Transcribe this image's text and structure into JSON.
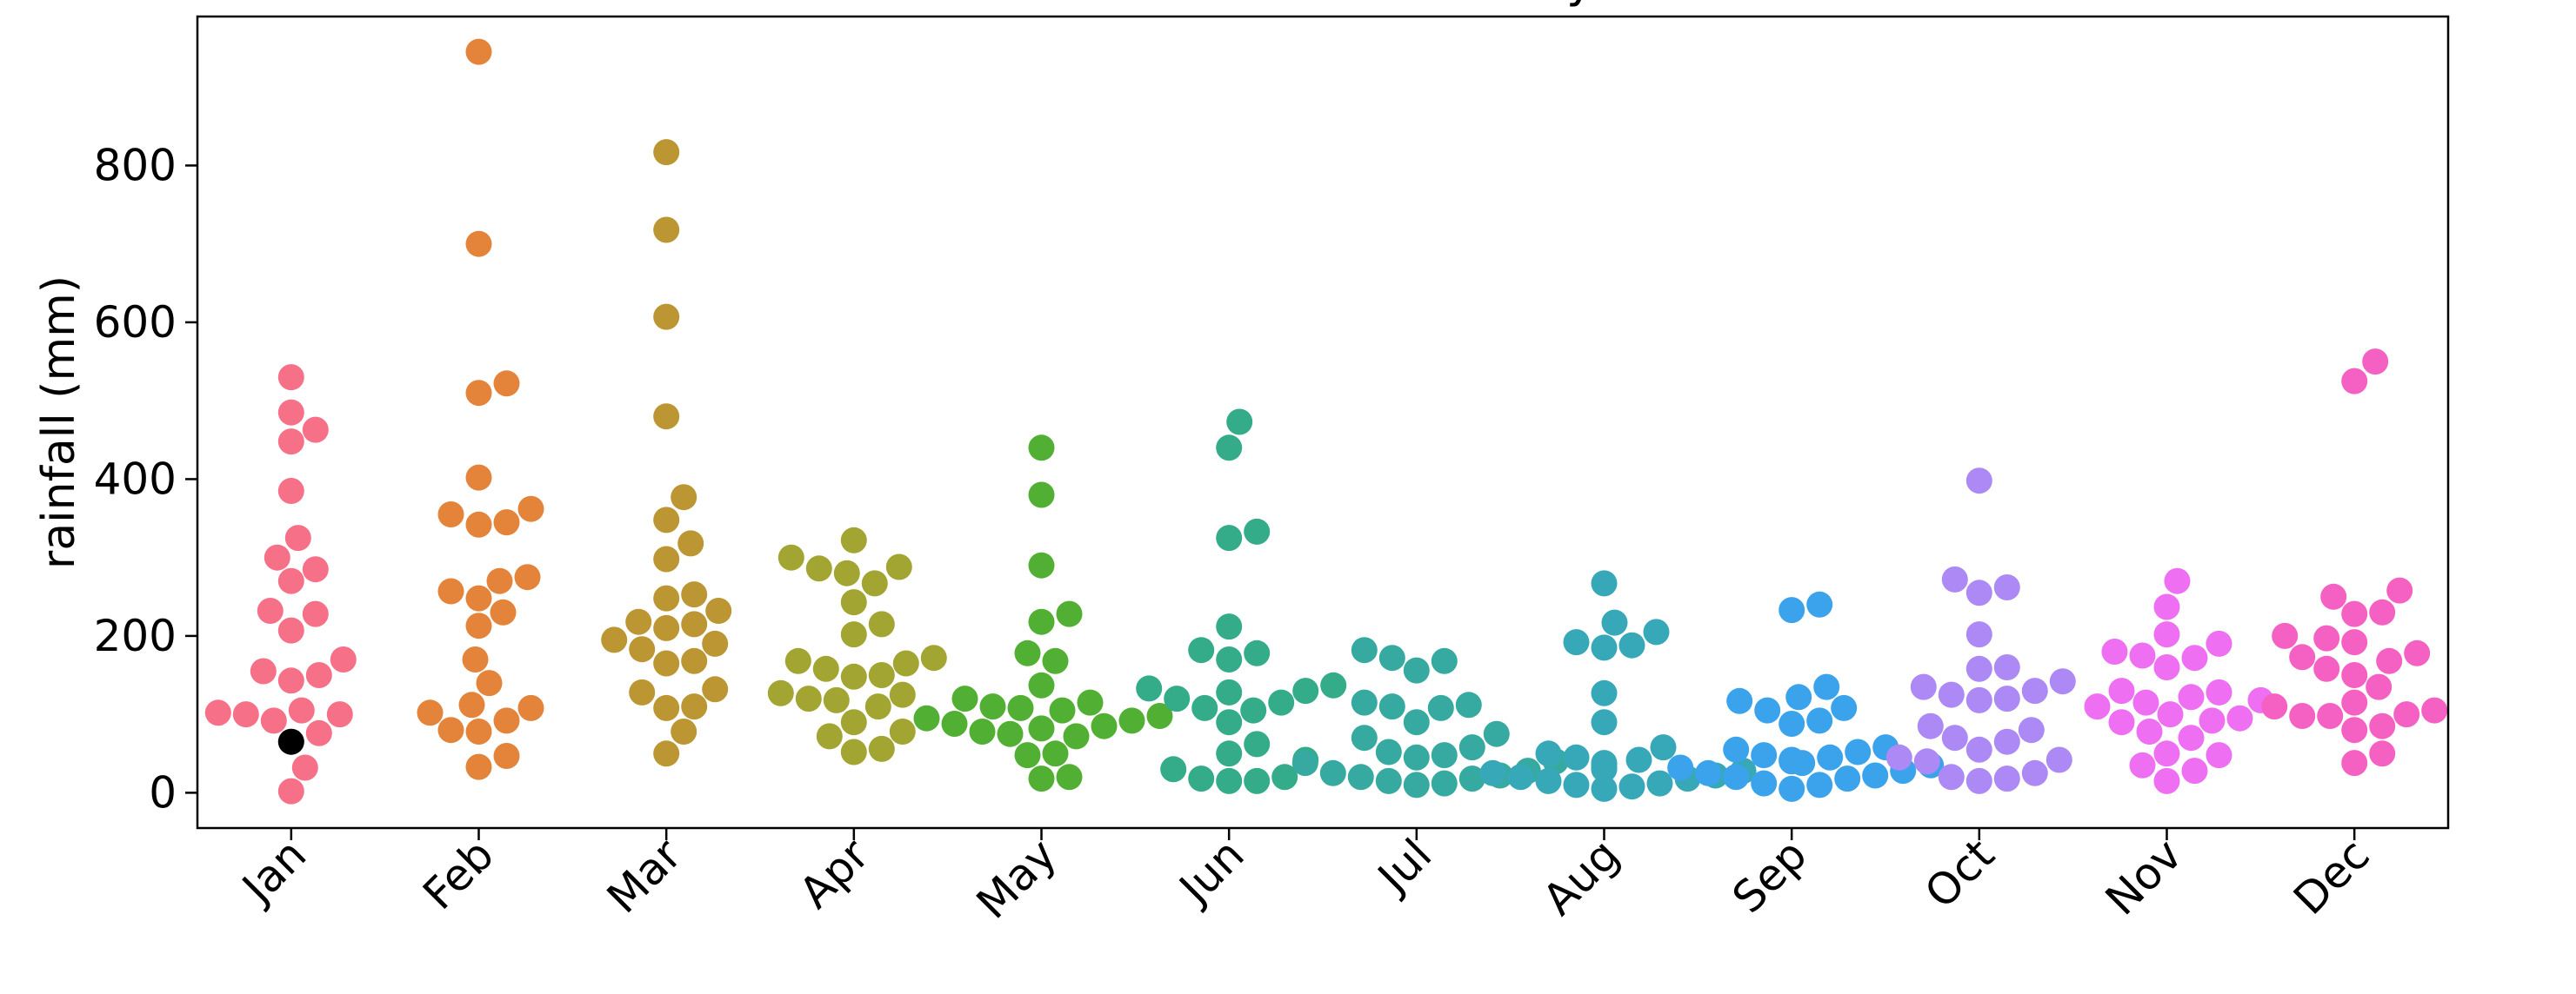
{
  "chart_data": {
    "type": "scatter",
    "subtype": "swarm",
    "title": "Rainfall historical monthly",
    "xlabel": "",
    "ylabel": "rainfall (mm)",
    "ylim": [
      -45,
      990
    ],
    "yticks": [
      0,
      200,
      400,
      600,
      800
    ],
    "grid": false,
    "categories": [
      "Jan",
      "Feb",
      "Mar",
      "Apr",
      "May",
      "Jun",
      "Jul",
      "Aug",
      "Sep",
      "Oct",
      "Nov",
      "Dec"
    ],
    "colors": [
      "#f67088",
      "#e4833a",
      "#bb9632",
      "#a2a532",
      "#51af33",
      "#34ab89",
      "#36aaa0",
      "#37a8b8",
      "#3ba3ec",
      "#ac89f4",
      "#ee6ff1",
      "#f561c3"
    ],
    "highlight": {
      "category": "Jan",
      "value": 65,
      "color": "#000000"
    },
    "series": [
      {
        "category": "Jan",
        "values": [
          530,
          485,
          463,
          448,
          385,
          325,
          300,
          285,
          270,
          232,
          228,
          207,
          170,
          155,
          150,
          143,
          105,
          102,
          100,
          100,
          92,
          76,
          65,
          32,
          2
        ]
      },
      {
        "category": "Feb",
        "values": [
          945,
          700,
          522,
          510,
          402,
          362,
          355,
          345,
          342,
          275,
          270,
          257,
          248,
          230,
          213,
          170,
          140,
          112,
          108,
          102,
          92,
          80,
          78,
          47,
          33
        ]
      },
      {
        "category": "Mar",
        "values": [
          817,
          718,
          607,
          480,
          377,
          348,
          318,
          298,
          253,
          248,
          232,
          218,
          215,
          210,
          195,
          190,
          183,
          168,
          165,
          132,
          128,
          110,
          108,
          78,
          50
        ]
      },
      {
        "category": "Apr",
        "values": [
          322,
          300,
          288,
          286,
          280,
          267,
          243,
          215,
          202,
          172,
          168,
          165,
          158,
          150,
          148,
          127,
          125,
          120,
          118,
          110,
          90,
          78,
          72,
          56,
          52
        ]
      },
      {
        "category": "May",
        "values": [
          440,
          380,
          290,
          228,
          218,
          178,
          168,
          137,
          120,
          115,
          110,
          108,
          105,
          98,
          95,
          92,
          88,
          85,
          82,
          78,
          75,
          72,
          50,
          48,
          20,
          18
        ]
      },
      {
        "category": "Jun",
        "values": [
          473,
          440,
          333,
          325,
          212,
          182,
          178,
          170,
          137,
          133,
          130,
          128,
          120,
          115,
          108,
          105,
          90,
          62,
          50,
          42,
          30,
          20,
          18,
          15,
          15
        ]
      },
      {
        "category": "Jul",
        "values": [
          182,
          172,
          168,
          156,
          115,
          112,
          110,
          108,
          90,
          75,
          70,
          58,
          52,
          48,
          45,
          40,
          38,
          28,
          25,
          22,
          20,
          18,
          15,
          12,
          10
        ]
      },
      {
        "category": "Aug",
        "values": [
          267,
          217,
          205,
          192,
          188,
          185,
          127,
          90,
          58,
          50,
          45,
          42,
          38,
          35,
          32,
          30,
          28,
          25,
          22,
          20,
          18,
          15,
          12,
          10,
          8,
          5
        ]
      },
      {
        "category": "Sep",
        "values": [
          240,
          233,
          135,
          122,
          117,
          108,
          105,
          92,
          88,
          58,
          55,
          52,
          48,
          45,
          42,
          40,
          38,
          35,
          32,
          28,
          25,
          22,
          20,
          18,
          12,
          10,
          5
        ]
      },
      {
        "category": "Oct",
        "values": [
          398,
          272,
          262,
          255,
          202,
          160,
          158,
          142,
          135,
          130,
          125,
          120,
          118,
          85,
          80,
          70,
          65,
          55,
          45,
          42,
          40,
          25,
          20,
          18,
          15
        ]
      },
      {
        "category": "Nov",
        "values": [
          270,
          237,
          202,
          190,
          180,
          175,
          172,
          160,
          130,
          128,
          122,
          118,
          115,
          110,
          100,
          95,
          92,
          90,
          78,
          70,
          50,
          48,
          35,
          28,
          15
        ]
      },
      {
        "category": "Dec",
        "values": [
          550,
          525,
          258,
          250,
          230,
          228,
          200,
          197,
          192,
          178,
          173,
          168,
          158,
          150,
          135,
          115,
          110,
          105,
          100,
          98,
          98,
          85,
          80,
          50,
          38
        ]
      }
    ]
  }
}
